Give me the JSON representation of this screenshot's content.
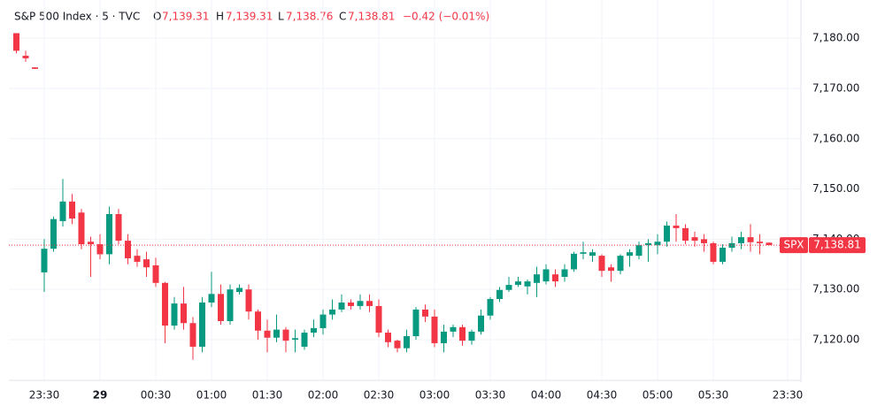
{
  "chart_data": {
    "type": "candlestick",
    "header": {
      "symbol": "S&P 500 Index · 5 · TVC",
      "o_label": "O",
      "open": "7,139.31",
      "h_label": "H",
      "high": "7,139.31",
      "l_label": "L",
      "low": "7,138.76",
      "c_label": "C",
      "close": "7,138.81",
      "change": "−0.42 (−0.01%)"
    },
    "categories": [
      "23:15",
      "23:20",
      "23:25",
      "23:30",
      "23:35",
      "23:40",
      "23:45",
      "23:50",
      "23:55",
      "00:00",
      "00:05",
      "00:10",
      "00:15",
      "00:20",
      "00:25",
      "00:30",
      "00:35",
      "00:40",
      "00:45",
      "00:50",
      "00:55",
      "01:00",
      "01:05",
      "01:10",
      "01:15",
      "01:20",
      "01:25",
      "01:30",
      "01:35",
      "01:40",
      "01:45",
      "01:50",
      "01:55",
      "02:00",
      "02:05",
      "02:10",
      "02:15",
      "02:20",
      "02:25",
      "02:30",
      "02:35",
      "02:40",
      "02:45",
      "02:50",
      "02:55",
      "03:00",
      "03:05",
      "03:10",
      "03:15",
      "03:20",
      "03:25",
      "03:30",
      "03:35",
      "03:40",
      "03:45",
      "03:50",
      "03:55",
      "04:00",
      "04:05",
      "04:10",
      "04:15",
      "04:20",
      "04:25",
      "04:30",
      "04:35",
      "04:40",
      "04:45",
      "04:50",
      "04:55",
      "05:00",
      "05:05",
      "05:10",
      "05:15",
      "05:20",
      "05:25",
      "05:30",
      "05:35",
      "05:40",
      "05:45",
      "05:50",
      "05:55",
      "06:00",
      "23:25",
      "23:30"
    ],
    "open": [
      7181,
      7176.5,
      7174.2,
      7133.4,
      7138.1,
      7143.6,
      7147.5,
      7145.3,
      7139.5,
      7139,
      7137,
      7145,
      7139.7,
      7136.7,
      7136,
      7134.8,
      7131.3,
      7122.8,
      7127.2,
      7123.3,
      7118.6,
      7127.4,
      7129.1,
      7123.7,
      7129.5,
      7130,
      7125.6,
      7121.8,
      7120.4,
      7122,
      7120,
      7118.6,
      7121.4,
      7122.3,
      7125,
      7126,
      7127.4,
      7126.7,
      7127.7,
      7126.7,
      7121.4,
      7119.8,
      7118.3,
      7120.7,
      7126,
      7124.6,
      7119.3,
      7121.6,
      7122.5,
      7119.8,
      7121.6,
      7124.8,
      7128.1,
      7129.9,
      7130.9,
      7130.6,
      7131.3,
      7131.6,
      7133,
      7132.5,
      7134,
      7137.1,
      7136.7,
      7136.7,
      7134.4,
      7133.7,
      7136.7,
      7136.7,
      7138.8,
      7138.8,
      7139.5,
      7142.7,
      7142.2,
      7140.4,
      7140,
      7139.2,
      7135.5,
      7138.3,
      7139.2,
      7140.4,
      7139.5,
      7139.31,
      null,
      null
    ],
    "high": [
      7181,
      7177.5,
      7174.2,
      7140,
      7144.5,
      7152,
      7149,
      7146,
      7140.5,
      7141,
      7146.5,
      7146,
      7141,
      7138,
      7137.5,
      7136.3,
      7131.5,
      7128.5,
      7130.5,
      7124.5,
      7128.5,
      7133.5,
      7131,
      7131,
      7131,
      7131,
      7126,
      7124,
      7125,
      7122.5,
      7122,
      7122,
      7124,
      7126,
      7128,
      7129,
      7128,
      7129,
      7129,
      7128,
      7122,
      7120,
      7122,
      7126.5,
      7127,
      7126,
      7123,
      7123,
      7123,
      7122,
      7126,
      7128.5,
      7130.5,
      7132.5,
      7132.5,
      7132,
      7134.5,
      7135,
      7134,
      7135,
      7137.5,
      7139.5,
      7138,
      7137,
      7135,
      7137,
      7138,
      7139.5,
      7140,
      7141,
      7143.5,
      7145,
      7143,
      7141.5,
      7141,
      7139.5,
      7139,
      7140.5,
      7141.5,
      7143,
      7141,
      7139.31,
      null,
      null
    ],
    "low": [
      7177,
      7175.3,
      7173.9,
      7129.5,
      7137.5,
      7142.5,
      7143,
      7138,
      7132.5,
      7136,
      7135,
      7139,
      7135,
      7134.5,
      7132.5,
      7130.5,
      7119.3,
      7122,
      7122,
      7116,
      7117.5,
      7126.5,
      7123,
      7123,
      7129,
      7124,
      7120,
      7117.5,
      7119.5,
      7117.5,
      7117.5,
      7118,
      7120.5,
      7121,
      7124,
      7125.5,
      7126,
      7126,
      7125.5,
      7120.5,
      7118.5,
      7117.5,
      7117.5,
      7120,
      7123.5,
      7118.5,
      7117.5,
      7120.5,
      7118.8,
      7119,
      7121,
      7124,
      7127.5,
      7129.5,
      7130.5,
      7129,
      7128.5,
      7131,
      7130.5,
      7131.5,
      7133.5,
      7136,
      7135.5,
      7132.5,
      7131.5,
      7133,
      7134.5,
      7136,
      7135.5,
      7137,
      7138.5,
      7139.5,
      7139,
      7138.5,
      7137.5,
      7135,
      7135,
      7137.5,
      7138,
      7137.5,
      7137,
      7138.76,
      null,
      null
    ],
    "close": [
      7177.5,
      7176,
      7173.9,
      7138.1,
      7144,
      7147.5,
      7144.1,
      7139,
      7139,
      7137,
      7145,
      7139.7,
      7136.2,
      7135.5,
      7134.4,
      7131.3,
      7122.8,
      7127.2,
      7123.3,
      7118.6,
      7127.4,
      7129.1,
      7123.7,
      7130,
      7130.3,
      7125.6,
      7121.8,
      7120.4,
      7122,
      7119.8,
      7120.3,
      7121.4,
      7122.3,
      7125,
      7126,
      7127.4,
      7126.7,
      7127.7,
      7126.7,
      7121.4,
      7119.5,
      7118.3,
      7120.7,
      7126,
      7124.6,
      7119.3,
      7121.6,
      7122.5,
      7119.8,
      7121.6,
      7124.8,
      7128.1,
      7129.9,
      7130.9,
      7131.6,
      7131.6,
      7133,
      7134,
      7131.6,
      7134,
      7137.1,
      7137.4,
      7137.4,
      7133.7,
      7133.7,
      7136.7,
      7137.4,
      7138.8,
      7139.2,
      7139.5,
      7142.7,
      7142.2,
      7139.7,
      7139.7,
      7139.2,
      7135.5,
      7138.3,
      7139.2,
      7140.4,
      7139.4,
      7139.2,
      7138.81,
      null,
      null
    ],
    "up_color": "#089981",
    "down_color": "#f23645",
    "ylim": [
      7111.9,
      7187.6
    ],
    "yticks": [
      {
        "value": 7120,
        "label": "7,120.00"
      },
      {
        "value": 7130,
        "label": "7,130.00"
      },
      {
        "value": 7140,
        "label": "7,140.00"
      },
      {
        "value": 7150,
        "label": "7,150.00"
      },
      {
        "value": 7160,
        "label": "7,160.00"
      },
      {
        "value": 7170,
        "label": "7,170.00"
      },
      {
        "value": 7180,
        "label": "7,180.00"
      }
    ],
    "xticks": [
      "23:30",
      {
        "value": "00:00",
        "label": "29"
      },
      "00:30",
      "01:00",
      "01:30",
      "02:00",
      "02:30",
      "03:00",
      "03:30",
      "04:00",
      "04:30",
      "05:00",
      "05:30",
      "23:30"
    ],
    "grid": true,
    "last_price": {
      "symbol": "SPX",
      "value": 7138.81,
      "label": "7,138.81"
    }
  }
}
